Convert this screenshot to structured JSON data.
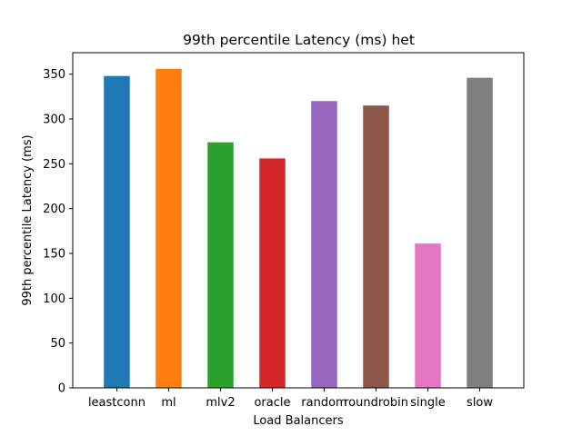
{
  "chart_data": {
    "type": "bar",
    "title": "99th percentile Latency (ms) het",
    "xlabel": "Load Balancers",
    "ylabel": "99th percentile Latency (ms)",
    "categories": [
      "leastconn",
      "ml",
      "mlv2",
      "oracle",
      "random",
      "roundrobin",
      "single",
      "slow"
    ],
    "values": [
      348,
      356,
      274,
      256,
      320,
      315,
      161,
      346
    ],
    "colors": [
      "#1f77b4",
      "#ff7f0e",
      "#2ca02c",
      "#d62728",
      "#9467bd",
      "#8c564b",
      "#e377c2",
      "#7f7f7f"
    ],
    "ylim": [
      0,
      374
    ],
    "yticks": [
      0,
      50,
      100,
      150,
      200,
      250,
      300,
      350
    ],
    "grid": false,
    "legend": "none"
  }
}
